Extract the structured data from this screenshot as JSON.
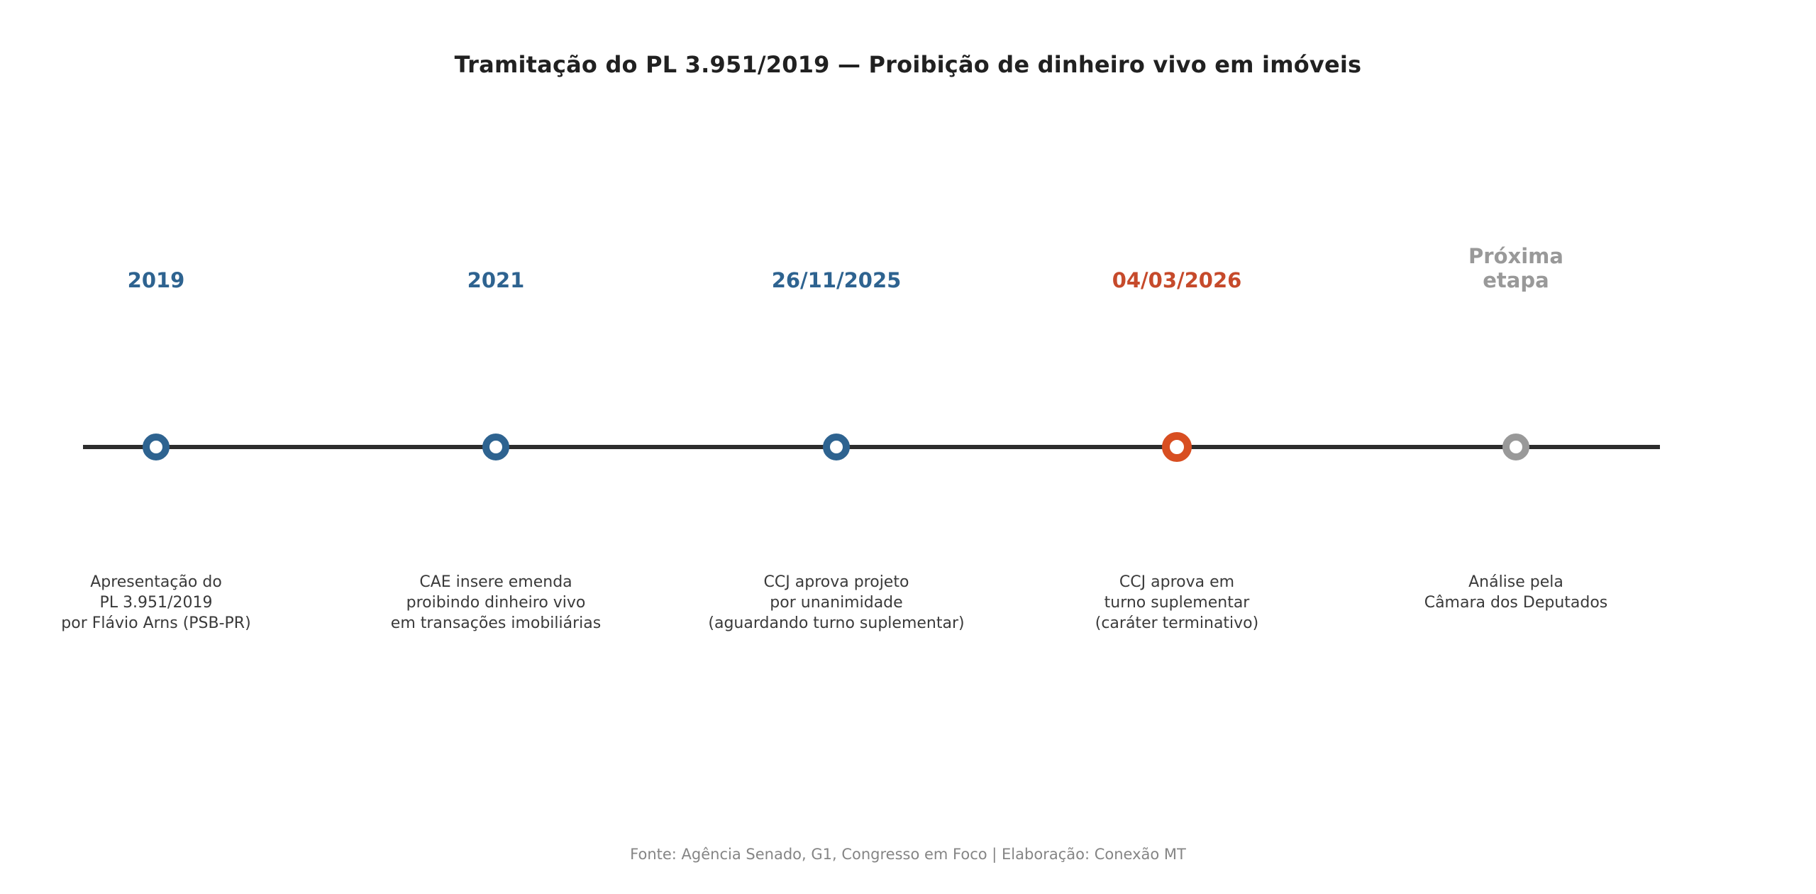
{
  "title": "Tramitação do PL 3.951/2019 — Proibição de dinheiro vivo em imóveis",
  "footer": "Fonte: Agência Senado, G1, Congresso em Foco | Elaboração: Conexão MT",
  "colors": {
    "title_text": "#212121",
    "timeline_line": "#2d2d2d",
    "milestone_done": "#2e6390",
    "milestone_current_text": "#c64a2b",
    "milestone_current_dot": "#d84e21",
    "milestone_future": "#999999",
    "description_text": "#3a3a3a",
    "footer_text": "#858585"
  },
  "timeline": {
    "milestones": [
      {
        "date": "2019",
        "status": "done",
        "description": "Apresentação do\nPL 3.951/2019\npor Flávio Arns (PSB-PR)"
      },
      {
        "date": "2021",
        "status": "done",
        "description": "CAE insere emenda\nproibindo dinheiro vivo\nem transações imobiliárias"
      },
      {
        "date": "26/11/2025",
        "status": "done",
        "description": "CCJ aprova projeto\npor unanimidade\n(aguardando turno suplementar)"
      },
      {
        "date": "04/03/2026",
        "status": "current",
        "description": "CCJ aprova em\nturno suplementar\n(caráter terminativo)"
      },
      {
        "date": "Próxima\netapa",
        "status": "future",
        "description": "Análise pela\nCâmara dos Deputados"
      }
    ]
  }
}
